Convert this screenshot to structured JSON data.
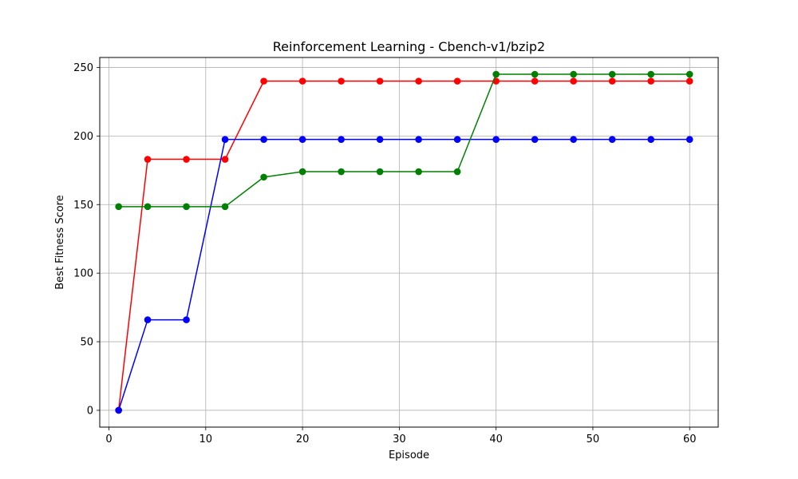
{
  "chart_data": {
    "type": "line",
    "title": "Reinforcement Learning - Cbench-v1/bzip2",
    "xlabel": "Episode",
    "ylabel": "Best Fitness Score",
    "xlim": [
      -0.95,
      62.95
    ],
    "ylim": [
      -12.25,
      257.25
    ],
    "xticks": [
      0,
      10,
      20,
      30,
      40,
      50,
      60
    ],
    "yticks": [
      0,
      50,
      100,
      150,
      200,
      250
    ],
    "grid": true,
    "x": [
      1,
      4,
      8,
      12,
      16,
      20,
      24,
      28,
      32,
      36,
      40,
      44,
      48,
      52,
      56,
      60
    ],
    "series": [
      {
        "color": "#ff0000",
        "values": [
          0,
          183,
          183,
          183,
          240,
          240,
          240,
          240,
          240,
          240,
          240,
          240,
          240,
          240,
          240,
          240
        ]
      },
      {
        "color": "#0000ff",
        "values": [
          0,
          66,
          66,
          197.5,
          197.5,
          197.5,
          197.5,
          197.5,
          197.5,
          197.5,
          197.5,
          197.5,
          197.5,
          197.5,
          197.5,
          197.5
        ]
      },
      {
        "color": "#008000",
        "values": [
          148.5,
          148.5,
          148.5,
          148.5,
          170,
          174,
          174,
          174,
          174,
          174,
          245,
          245,
          245,
          245,
          245,
          245
        ]
      }
    ]
  }
}
